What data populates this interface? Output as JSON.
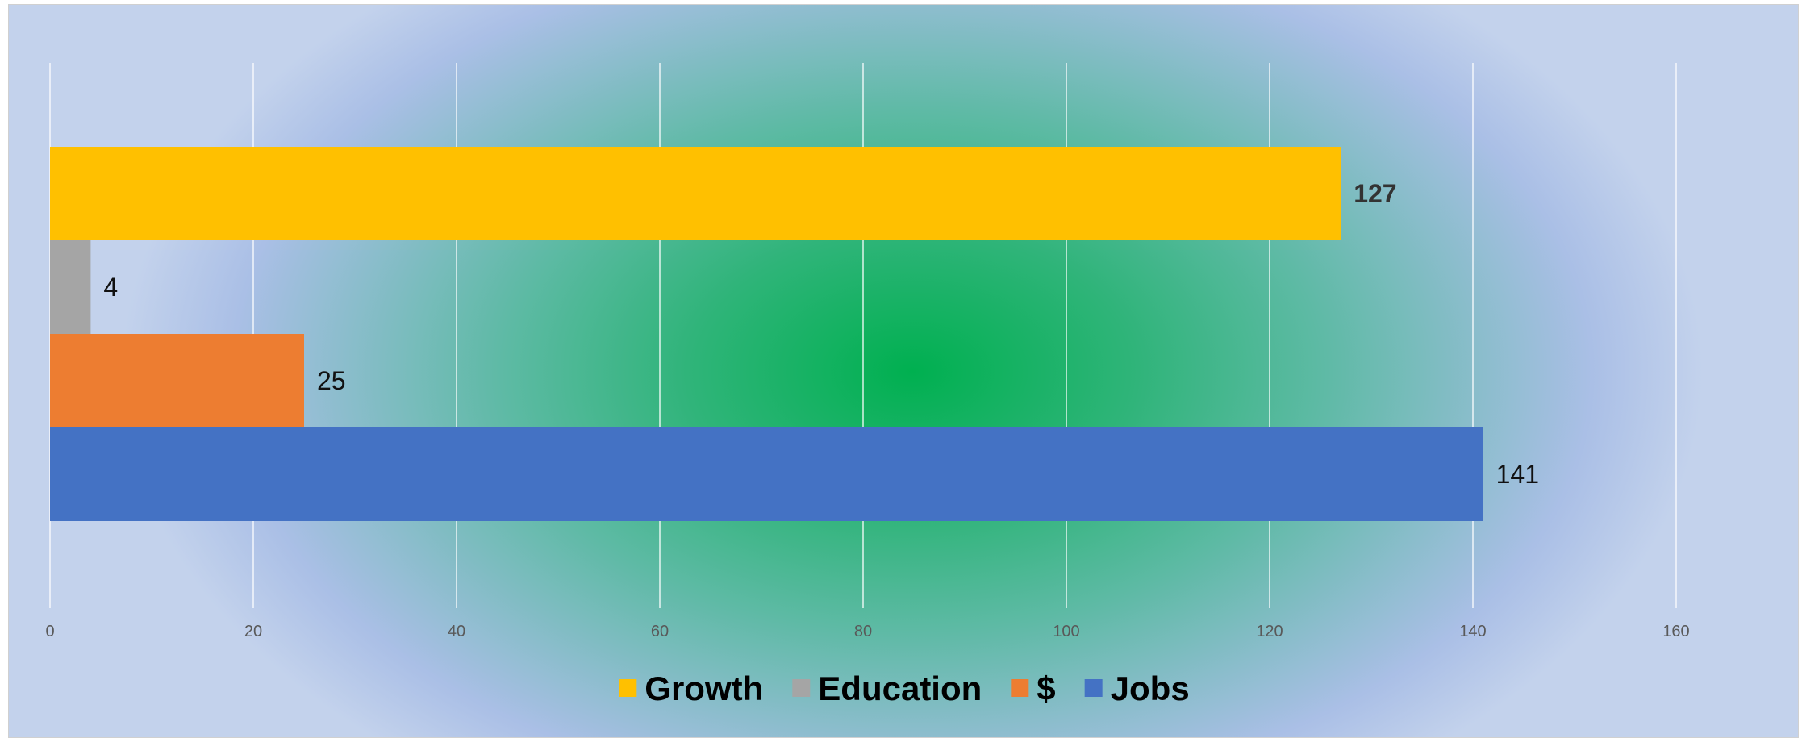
{
  "chart_data": {
    "type": "bar",
    "orientation": "horizontal",
    "categories": [
      ""
    ],
    "series": [
      {
        "name": "Growth",
        "values": [
          127
        ],
        "color": "#FFC000",
        "label_bold": true
      },
      {
        "name": "Education",
        "values": [
          4
        ],
        "color": "#A5A5A5",
        "label_bold": false
      },
      {
        "name": "$",
        "values": [
          25
        ],
        "color": "#ED7D31",
        "label_bold": false
      },
      {
        "name": "Jobs",
        "values": [
          141
        ],
        "color": "#4472C4",
        "label_bold": false
      }
    ],
    "x_ticks": [
      "0",
      "20",
      "40",
      "60",
      "80",
      "100",
      "120",
      "140",
      "160"
    ],
    "xlim": [
      0,
      160
    ],
    "grid": "vertical",
    "legend": "bottom",
    "title": "",
    "xlabel": "",
    "ylabel": ""
  }
}
